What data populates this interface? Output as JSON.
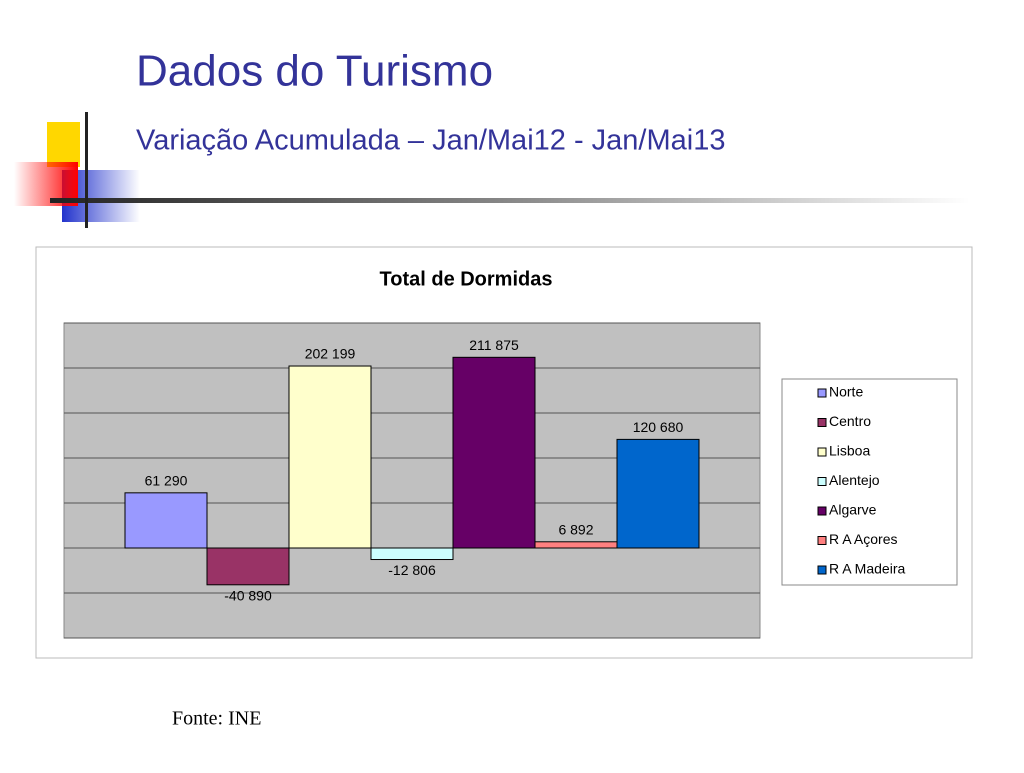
{
  "slide": {
    "title": "Dados do Turismo",
    "subtitle": "Variação Acumulada – Jan/Mai12 - Jan/Mai13",
    "source": "Fonte: INE"
  },
  "chart_data": {
    "type": "bar",
    "title": "Total de Dormidas",
    "series": [
      {
        "name": "Norte",
        "color": "#9999ff",
        "values": [
          61290
        ],
        "value_labels": [
          "61 290"
        ]
      },
      {
        "name": "Centro",
        "color": "#993366",
        "values": [
          -40890
        ],
        "value_labels": [
          "-40 890"
        ]
      },
      {
        "name": "Lisboa",
        "color": "#ffffcc",
        "values": [
          202199
        ],
        "value_labels": [
          "202 199"
        ]
      },
      {
        "name": "Alentejo",
        "color": "#ccffff",
        "values": [
          -12806
        ],
        "value_labels": [
          "-12 806"
        ]
      },
      {
        "name": "Algarve",
        "color": "#660066",
        "values": [
          211875
        ],
        "value_labels": [
          "211 875"
        ]
      },
      {
        "name": "R A Açores",
        "color": "#ff8080",
        "values": [
          6892
        ],
        "value_labels": [
          "6 892"
        ]
      },
      {
        "name": "R A Madeira",
        "color": "#0066cc",
        "values": [
          120680
        ],
        "value_labels": [
          "120 680"
        ]
      }
    ],
    "ylim": [
      -100000,
      250000
    ],
    "yticks": [
      -100000,
      -50000,
      0,
      50000,
      100000,
      150000,
      200000,
      250000
    ],
    "grid": true,
    "legend": "right"
  }
}
